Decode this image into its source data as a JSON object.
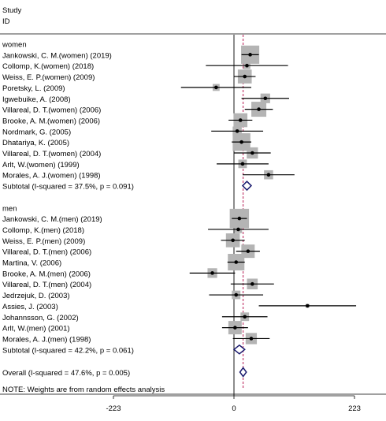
{
  "chart_data": {
    "type": "forest",
    "header": {
      "line1": "Study",
      "line2": "ID"
    },
    "x_ticks": [
      "-223",
      "0",
      "223"
    ],
    "xlim": [
      -223,
      223
    ],
    "overall_effect_line": 17,
    "groups": [
      {
        "name": "women",
        "studies": [
          {
            "label": "Jankowski, C. M.(women) (2019)",
            "est": 30,
            "lo": 14,
            "hi": 46,
            "w": 6.2
          },
          {
            "label": "Collomp, K.(women) (2018)",
            "est": 24,
            "lo": -52,
            "hi": 100,
            "w": 2.0
          },
          {
            "label": "Weiss, E. P.(women) (2009)",
            "est": 20,
            "lo": 0,
            "hi": 40,
            "w": 4.6
          },
          {
            "label": "Poretsky, L. (2009)",
            "est": -33,
            "lo": -98,
            "hi": 32,
            "w": 2.0
          },
          {
            "label": "Igwebuike, A. (2008)",
            "est": 58,
            "lo": 14,
            "hi": 102,
            "w": 3.0
          },
          {
            "label": "Villareal, D. T.(women) (2006)",
            "est": 46,
            "lo": 20,
            "hi": 72,
            "w": 5.0
          },
          {
            "label": "Brooke, A. M.(women) (2006)",
            "est": 12,
            "lo": -10,
            "hi": 34,
            "w": 4.6
          },
          {
            "label": "Nordmark, G. (2005)",
            "est": 6,
            "lo": -42,
            "hi": 54,
            "w": 2.8
          },
          {
            "label": "Dhatariya, K. (2005)",
            "est": 14,
            "lo": -4,
            "hi": 32,
            "w": 6.0
          },
          {
            "label": "Villareal, D. T.(women) (2004)",
            "est": 34,
            "lo": 0,
            "hi": 68,
            "w": 3.6
          },
          {
            "label": "Arlt, W.(women) (1999)",
            "est": 16,
            "lo": -32,
            "hi": 64,
            "w": 2.6
          },
          {
            "label": "Morales, A. J.(women) (1998)",
            "est": 64,
            "lo": 16,
            "hi": 112,
            "w": 2.8
          }
        ],
        "subtotal": {
          "label": "Subtotal  (I-squared = 37.5%, p = 0.091)",
          "est": 24,
          "lo": 16,
          "hi": 32
        }
      },
      {
        "name": "men",
        "studies": [
          {
            "label": "Jankowski, C. M.(men) (2019)",
            "est": 10,
            "lo": -4,
            "hi": 24,
            "w": 6.6
          },
          {
            "label": "Collomp, K.(men) (2018)",
            "est": 8,
            "lo": -48,
            "hi": 64,
            "w": 2.2
          },
          {
            "label": "Weiss, E. P.(men) (2009)",
            "est": -2,
            "lo": -24,
            "hi": 20,
            "w": 4.6
          },
          {
            "label": "Villareal, D. T.(men) (2006)",
            "est": 26,
            "lo": 4,
            "hi": 48,
            "w": 4.4
          },
          {
            "label": "Martina, V. (2006)",
            "est": 4,
            "lo": -12,
            "hi": 20,
            "w": 5.6
          },
          {
            "label": "Brooke, A. M.(men) (2006)",
            "est": -40,
            "lo": -82,
            "hi": 2,
            "w": 3.0
          },
          {
            "label": "Villareal, D. T.(men) (2004)",
            "est": 34,
            "lo": -6,
            "hi": 74,
            "w": 3.4
          },
          {
            "label": "Jedrzejuk, D. (2003)",
            "est": 4,
            "lo": -46,
            "hi": 54,
            "w": 2.6
          },
          {
            "label": "Assies, J. (2003)",
            "est": 136,
            "lo": 46,
            "hi": 226,
            "w": 0.8
          },
          {
            "label": "Johannsson, G. (2002)",
            "est": 20,
            "lo": -22,
            "hi": 62,
            "w": 2.6
          },
          {
            "label": "Arlt, W.(men) (2001)",
            "est": 2,
            "lo": -22,
            "hi": 26,
            "w": 4.4
          },
          {
            "label": "Morales, A. J.(men) (1998)",
            "est": 32,
            "lo": -2,
            "hi": 66,
            "w": 3.6
          }
        ],
        "subtotal": {
          "label": "Subtotal  (I-squared = 42.2%, p = 0.061)",
          "est": 10,
          "lo": 0,
          "hi": 20
        }
      }
    ],
    "overall": {
      "label": "Overall  (I-squared = 47.6%, p = 0.005)",
      "est": 17,
      "lo": 11,
      "hi": 23
    },
    "note": "NOTE: Weights are from random effects analysis",
    "colors": {
      "box": "#b4b4b4",
      "diamond": "#1a1a6e",
      "dashed_line": "#b00040",
      "line": "#000000"
    }
  }
}
